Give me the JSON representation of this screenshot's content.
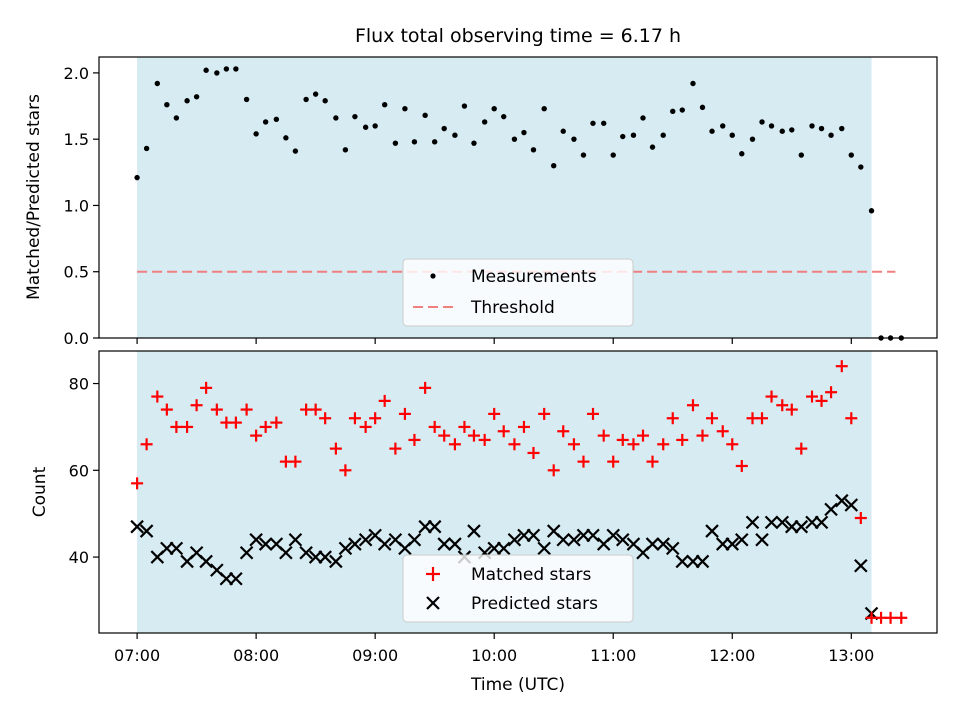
{
  "title": "Flux total observing time = 6.17 h",
  "chart_data": [
    {
      "type": "scatter",
      "panel": "top",
      "ylabel": "Matched/Predicted stars",
      "xlim": [
        -0.32,
        6.72
      ],
      "ylim": [
        0,
        2.12
      ],
      "yticks": [
        0.0,
        0.5,
        1.0,
        1.5,
        2.0
      ],
      "ytick_labels": [
        "0.0",
        "0.5",
        "1.0",
        "1.5",
        "2.0"
      ],
      "observing_window": [
        0.0,
        6.17
      ],
      "threshold": {
        "y": 0.5,
        "x_range": [
          0.0,
          6.37
        ],
        "color": "#f08080",
        "style": "dashed"
      },
      "legend": {
        "position": "lower center",
        "entries": [
          "Measurements",
          "Threshold"
        ]
      },
      "series": [
        {
          "name": "Measurements",
          "marker": "dot",
          "color": "#000000",
          "x": [
            0.0,
            0.08,
            0.17,
            0.25,
            0.33,
            0.42,
            0.5,
            0.58,
            0.67,
            0.75,
            0.83,
            0.92,
            1.0,
            1.08,
            1.17,
            1.25,
            1.33,
            1.42,
            1.5,
            1.58,
            1.67,
            1.75,
            1.83,
            1.92,
            2.0,
            2.08,
            2.17,
            2.25,
            2.33,
            2.42,
            2.5,
            2.58,
            2.67,
            2.75,
            2.83,
            2.92,
            3.0,
            3.08,
            3.17,
            3.25,
            3.33,
            3.42,
            3.5,
            3.58,
            3.67,
            3.75,
            3.83,
            3.92,
            4.0,
            4.08,
            4.17,
            4.25,
            4.33,
            4.42,
            4.5,
            4.58,
            4.67,
            4.75,
            4.83,
            4.92,
            5.0,
            5.08,
            5.17,
            5.25,
            5.33,
            5.42,
            5.5,
            5.58,
            5.67,
            5.75,
            5.83,
            5.92,
            6.0,
            6.08,
            6.17,
            6.25,
            6.33,
            6.42
          ],
          "y": [
            1.21,
            1.43,
            1.92,
            1.76,
            1.66,
            1.79,
            1.82,
            2.02,
            2.0,
            2.03,
            2.03,
            1.8,
            1.54,
            1.63,
            1.65,
            1.51,
            1.41,
            1.8,
            1.84,
            1.79,
            1.66,
            1.42,
            1.67,
            1.59,
            1.6,
            1.76,
            1.47,
            1.73,
            1.48,
            1.68,
            1.48,
            1.58,
            1.53,
            1.75,
            1.47,
            1.63,
            1.73,
            1.67,
            1.5,
            1.55,
            1.42,
            1.73,
            1.3,
            1.56,
            1.5,
            1.38,
            1.62,
            1.62,
            1.38,
            1.52,
            1.53,
            1.66,
            1.44,
            1.53,
            1.71,
            1.72,
            1.92,
            1.74,
            1.56,
            1.6,
            1.53,
            1.39,
            1.5,
            1.63,
            1.6,
            1.56,
            1.57,
            1.38,
            1.6,
            1.58,
            1.53,
            1.58,
            1.38,
            1.29,
            0.96,
            0.0,
            0.0,
            0.0
          ]
        }
      ]
    },
    {
      "type": "scatter",
      "panel": "bottom",
      "xlabel": "Time (UTC)",
      "ylabel": "Count",
      "xlim": [
        -0.32,
        6.72
      ],
      "ylim": [
        22.5,
        87.5
      ],
      "xticks": [
        0,
        1,
        2,
        3,
        4,
        5,
        6
      ],
      "xtick_labels": [
        "07:00",
        "08:00",
        "09:00",
        "10:00",
        "11:00",
        "12:00",
        "13:00"
      ],
      "yticks": [
        40,
        60,
        80
      ],
      "ytick_labels": [
        "40",
        "60",
        "80"
      ],
      "observing_window": [
        0.0,
        6.17
      ],
      "legend": {
        "position": "lower center",
        "entries": [
          "Matched stars",
          "Predicted stars"
        ]
      },
      "series": [
        {
          "name": "Matched stars",
          "marker": "plus",
          "color": "#ff0000",
          "x": [
            0.0,
            0.08,
            0.17,
            0.25,
            0.33,
            0.42,
            0.5,
            0.58,
            0.67,
            0.75,
            0.83,
            0.92,
            1.0,
            1.08,
            1.17,
            1.25,
            1.33,
            1.42,
            1.5,
            1.58,
            1.67,
            1.75,
            1.83,
            1.92,
            2.0,
            2.08,
            2.17,
            2.25,
            2.33,
            2.42,
            2.5,
            2.58,
            2.67,
            2.75,
            2.83,
            2.92,
            3.0,
            3.08,
            3.17,
            3.25,
            3.33,
            3.42,
            3.5,
            3.58,
            3.67,
            3.75,
            3.83,
            3.92,
            4.0,
            4.08,
            4.17,
            4.25,
            4.33,
            4.42,
            4.5,
            4.58,
            4.67,
            4.75,
            4.83,
            4.92,
            5.0,
            5.08,
            5.17,
            5.25,
            5.33,
            5.42,
            5.5,
            5.58,
            5.67,
            5.75,
            5.83,
            5.92,
            6.0,
            6.08,
            6.17,
            6.25,
            6.33,
            6.42
          ],
          "y": [
            57,
            66,
            77,
            74,
            70,
            70,
            75,
            79,
            74,
            71,
            71,
            74,
            68,
            70,
            71,
            62,
            62,
            74,
            74,
            72,
            65,
            60,
            72,
            70,
            72,
            76,
            65,
            73,
            67,
            79,
            70,
            68,
            66,
            70,
            68,
            67,
            73,
            69,
            66,
            70,
            64,
            73,
            60,
            69,
            66,
            62,
            73,
            68,
            62,
            67,
            66,
            68,
            62,
            66,
            72,
            67,
            75,
            68,
            72,
            69,
            66,
            61,
            72,
            72,
            77,
            75,
            74,
            65,
            77,
            76,
            78,
            84,
            72,
            49,
            26,
            26,
            26,
            26
          ]
        },
        {
          "name": "Predicted stars",
          "marker": "x",
          "color": "#000000",
          "x": [
            0.0,
            0.08,
            0.17,
            0.25,
            0.33,
            0.42,
            0.5,
            0.58,
            0.67,
            0.75,
            0.83,
            0.92,
            1.0,
            1.08,
            1.17,
            1.25,
            1.33,
            1.42,
            1.5,
            1.58,
            1.67,
            1.75,
            1.83,
            1.92,
            2.0,
            2.08,
            2.17,
            2.25,
            2.33,
            2.42,
            2.5,
            2.58,
            2.67,
            2.75,
            2.83,
            2.92,
            3.0,
            3.08,
            3.17,
            3.25,
            3.33,
            3.42,
            3.5,
            3.58,
            3.67,
            3.75,
            3.83,
            3.92,
            4.0,
            4.08,
            4.17,
            4.25,
            4.33,
            4.42,
            4.5,
            4.58,
            4.67,
            4.75,
            4.83,
            4.92,
            5.0,
            5.08,
            5.17,
            5.25,
            5.33,
            5.42,
            5.5,
            5.58,
            5.67,
            5.75,
            5.83,
            5.92,
            6.0,
            6.08,
            6.17
          ],
          "y": [
            47,
            46,
            40,
            42,
            42,
            39,
            41,
            39,
            37,
            35,
            35,
            41,
            44,
            43,
            43,
            41,
            44,
            41,
            40,
            40,
            39,
            42,
            43,
            44,
            45,
            43,
            44,
            42,
            44,
            47,
            47,
            43,
            43,
            40,
            46,
            41,
            42,
            42,
            44,
            45,
            45,
            42,
            46,
            44,
            44,
            45,
            45,
            43,
            45,
            44,
            43,
            41,
            43,
            43,
            42,
            39,
            39,
            39,
            46,
            43,
            43,
            44,
            48,
            44,
            48,
            48,
            47,
            47,
            48,
            48,
            51,
            53,
            52,
            38,
            27
          ]
        }
      ]
    }
  ]
}
